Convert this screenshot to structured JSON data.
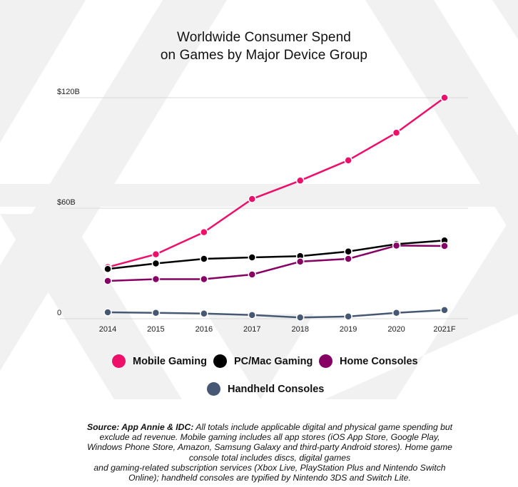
{
  "chart_data": {
    "type": "line",
    "title": [
      "Worldwide Consumer Spend",
      "on Games by Major Device Group"
    ],
    "categories": [
      "2014",
      "2015",
      "2016",
      "2017",
      "2018",
      "2019",
      "2020",
      "2021F"
    ],
    "y_ticks": [
      {
        "value": 0,
        "label": "0"
      },
      {
        "value": 60,
        "label": "$60B"
      },
      {
        "value": 120,
        "label": "$120B"
      }
    ],
    "ylim": [
      0,
      120
    ],
    "grid": true,
    "series": [
      {
        "name": "Mobile Gaming",
        "color": "#ee0f6a",
        "values": [
          28,
          35,
          47,
          65,
          75,
          86,
          101,
          120
        ]
      },
      {
        "name": "PC/Mac Gaming",
        "color": "#000000",
        "values": [
          27,
          30,
          32.5,
          33.3,
          34,
          36.5,
          40.5,
          42.5
        ]
      },
      {
        "name": "Home Consoles",
        "color": "#870064",
        "values": [
          20.5,
          21.5,
          21.5,
          24,
          31,
          32.5,
          39.7,
          39.5
        ]
      },
      {
        "name": "Handheld Consoles",
        "color": "#465873",
        "values": [
          3.5,
          3.2,
          2.8,
          2,
          0.7,
          1.2,
          3.2,
          4.7
        ]
      }
    ],
    "legend_position": "bottom"
  },
  "footnote": {
    "source_label": "Source: App Annie & IDC:",
    "lines": [
      " All totals include applicable digital and physical game spending but",
      "exclude ad revenue. Mobile gaming includes all app stores (iOS App Store, Google Play,",
      "Windows Phone Store, Amazon, Samsung Galaxy and third-party Android stores). Home game",
      "console total includes discs, digital games",
      "and gaming-related subscription services (Xbox Live, PlayStation Plus and Nintendo Switch",
      "Online); handheld consoles are typified by Nintendo 3DS and Switch Lite."
    ]
  }
}
